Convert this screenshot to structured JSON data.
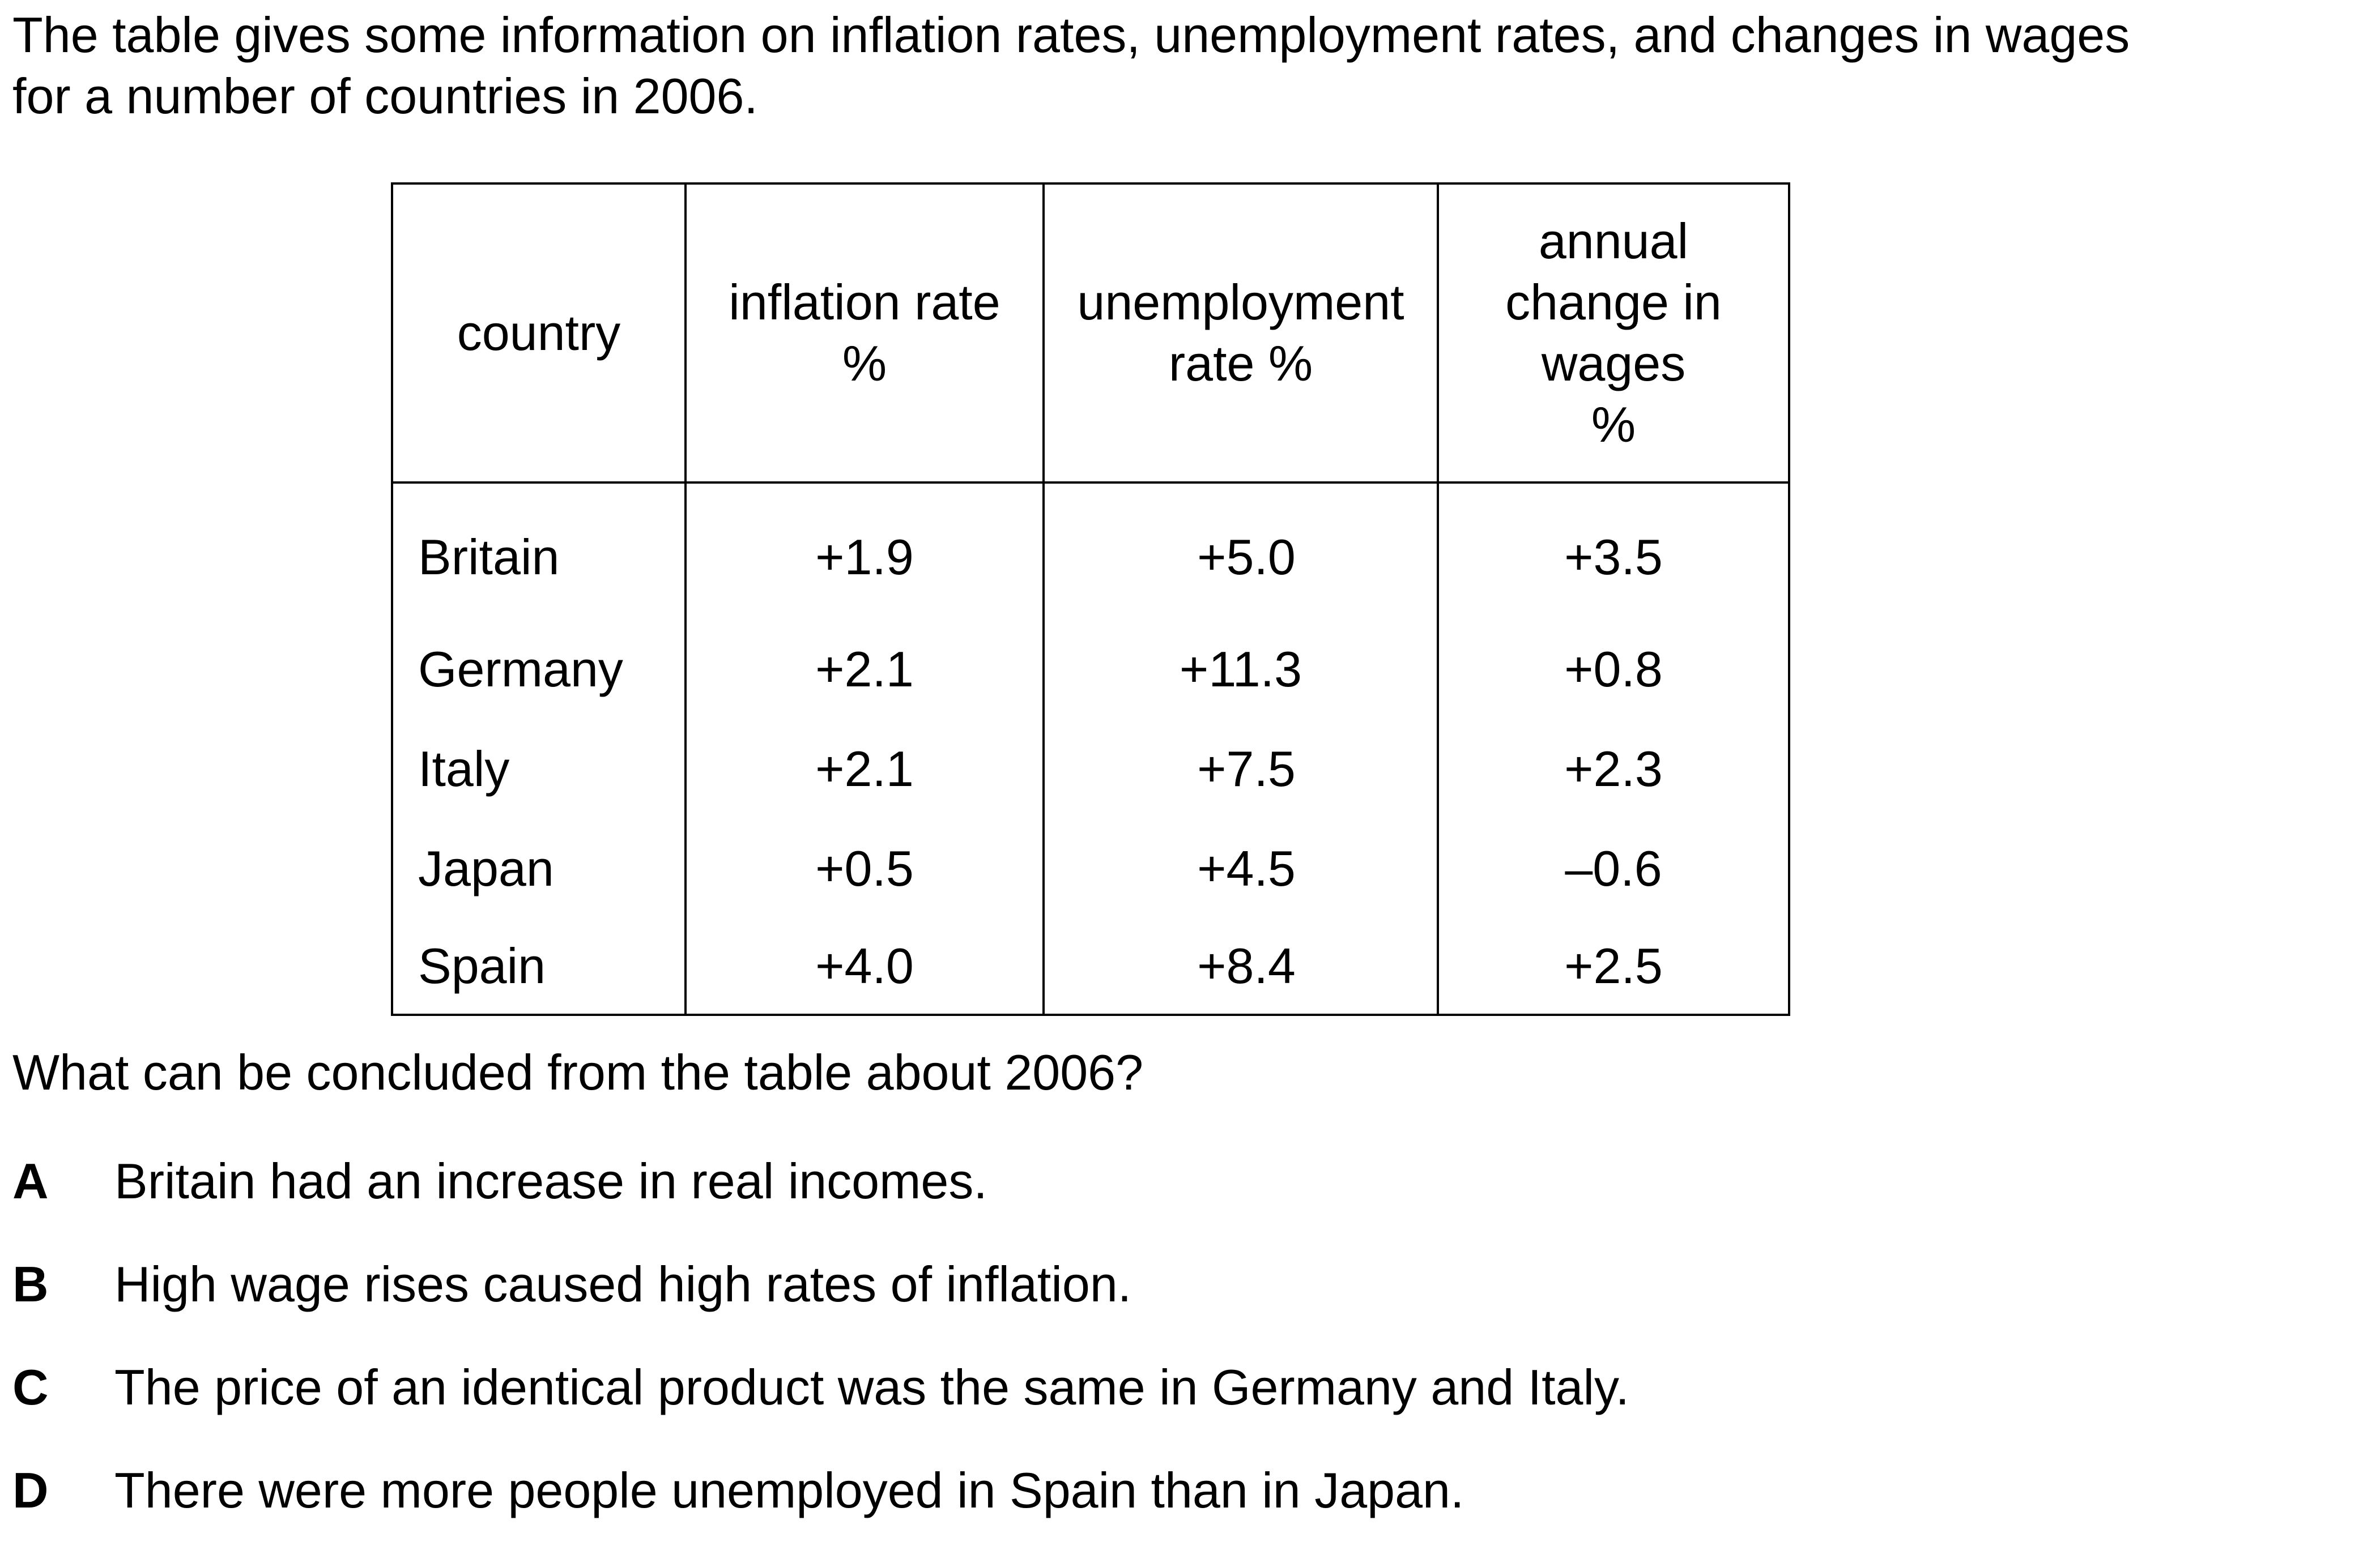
{
  "intro": {
    "line1": "The table gives some information on inflation rates, unemployment rates, and changes in wages",
    "line2": "for a number of countries in 2006."
  },
  "table": {
    "headers": [
      [
        "country"
      ],
      [
        "inflation rate",
        "%"
      ],
      [
        "unemployment",
        "rate %"
      ],
      [
        "annual",
        "change in",
        "wages",
        "%"
      ]
    ],
    "rows": [
      {
        "country": "Britain",
        "inflation": "+1.9",
        "unemployment": "+5.0",
        "wages": "+3.5"
      },
      {
        "country": "Germany",
        "inflation": "+2.1",
        "unemployment": "+11.3",
        "wages": "+0.8"
      },
      {
        "country": "Italy",
        "inflation": "+2.1",
        "unemployment": "+7.5",
        "wages": "+2.3"
      },
      {
        "country": "Japan",
        "inflation": "+0.5",
        "unemployment": "+4.5",
        "wages": "–0.6"
      },
      {
        "country": "Spain",
        "inflation": "+4.0",
        "unemployment": "+8.4",
        "wages": "+2.5"
      }
    ]
  },
  "question": "What can be concluded from the table about 2006?",
  "options": [
    {
      "letter": "A",
      "text": "Britain had an increase in real incomes."
    },
    {
      "letter": "B",
      "text": "High wage rises caused high rates of inflation."
    },
    {
      "letter": "C",
      "text": "The price of an identical product was the same in Germany and Italy."
    },
    {
      "letter": "D",
      "text": "There were more people unemployed in Spain than in Japan."
    }
  ]
}
